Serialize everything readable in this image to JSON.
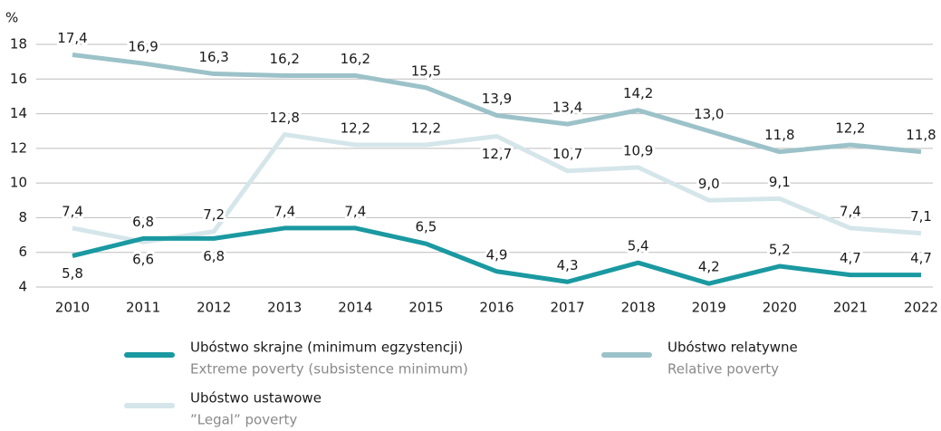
{
  "chart_data": {
    "type": "line",
    "y_label": "%",
    "x": [
      2010,
      2011,
      2012,
      2013,
      2014,
      2015,
      2016,
      2017,
      2018,
      2019,
      2020,
      2021,
      2022
    ],
    "series": [
      {
        "name": "Ubóstwo skrajne (minimum egzystencji)",
        "name_en": "Extreme poverty (subsistence minimum)",
        "color": "#1a99a1",
        "values": [
          5.8,
          6.8,
          6.8,
          7.4,
          7.4,
          6.5,
          4.9,
          4.3,
          5.4,
          4.2,
          5.2,
          4.7,
          4.7
        ],
        "value_labels": [
          "5,8",
          "6,8",
          "6,8",
          "7,4",
          "7,4",
          "6,5",
          "4,9",
          "4,3",
          "5,4",
          "4,2",
          "5,2",
          "4,7",
          "4,7"
        ]
      },
      {
        "name": "Ubóstwo relatywne",
        "name_en": "Relative poverty",
        "color": "#9cc2c9",
        "values": [
          17.4,
          16.9,
          16.3,
          16.2,
          16.2,
          15.5,
          13.9,
          13.4,
          14.2,
          13.0,
          11.8,
          12.2,
          11.8
        ],
        "value_labels": [
          "17,4",
          "16,9",
          "16,3",
          "16,2",
          "16,2",
          "15,5",
          "13,9",
          "13,4",
          "14,2",
          "13,0",
          "11,8",
          "12,2",
          "11,8"
        ]
      },
      {
        "name": "Ubóstwo ustawowe",
        "name_en": "”Legal” poverty",
        "color": "#d5e6ea",
        "values": [
          7.4,
          6.6,
          7.2,
          12.8,
          12.2,
          12.2,
          12.7,
          10.7,
          10.9,
          9.0,
          9.1,
          7.4,
          7.1
        ],
        "value_labels": [
          "7,4",
          "6,6",
          "7,2",
          "12,8",
          "12,2",
          "12,2",
          "12,7",
          "10,7",
          "10,9",
          "9,0",
          "9,1",
          "7,4",
          "7,1"
        ]
      }
    ],
    "ylim": [
      4,
      18
    ],
    "yticks": [
      4,
      6,
      8,
      10,
      12,
      14,
      16,
      18
    ],
    "grid": true
  }
}
